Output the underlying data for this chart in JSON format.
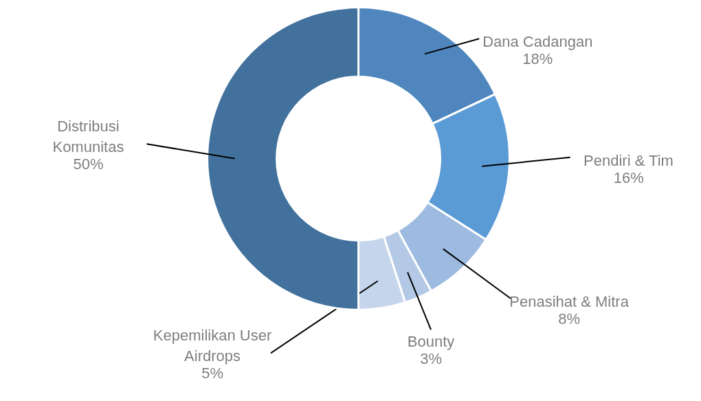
{
  "chart_data": {
    "type": "donut",
    "categories": [
      "Dana Cadangan",
      "Pendiri & Tim",
      "Penasihat & Mitra",
      "Bounty",
      "Kepemilikan User Airdrops",
      "Distribusi Komunitas"
    ],
    "values": [
      18,
      16,
      8,
      3,
      5,
      50
    ],
    "colors": [
      "#4f86bd",
      "#5b9bd5",
      "#9dbbe0",
      "#b4c9e6",
      "#c5d5eb",
      "#41719c"
    ],
    "value_labels": [
      "18%",
      "16%",
      "8%",
      "3%",
      "5%",
      "50%"
    ]
  }
}
